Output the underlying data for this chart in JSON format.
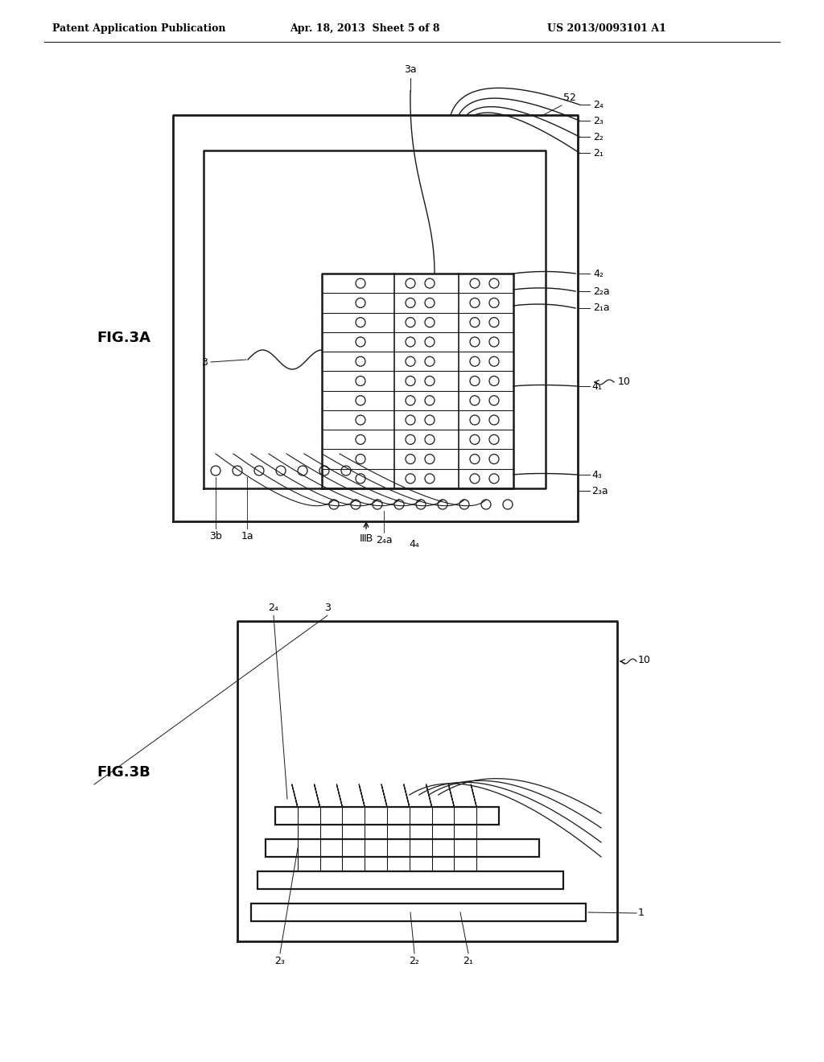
{
  "bg_color": "#ffffff",
  "lc": "#1a1a1a",
  "header_left": "Patent Application Publication",
  "header_mid": "Apr. 18, 2013  Sheet 5 of 8",
  "header_right": "US 2013/0093101 A1",
  "fig3a_label": "FIG.3A",
  "fig3b_label": "FIG.3B",
  "lw": 1.8,
  "tlw": 1.0,
  "pad_r": 6
}
